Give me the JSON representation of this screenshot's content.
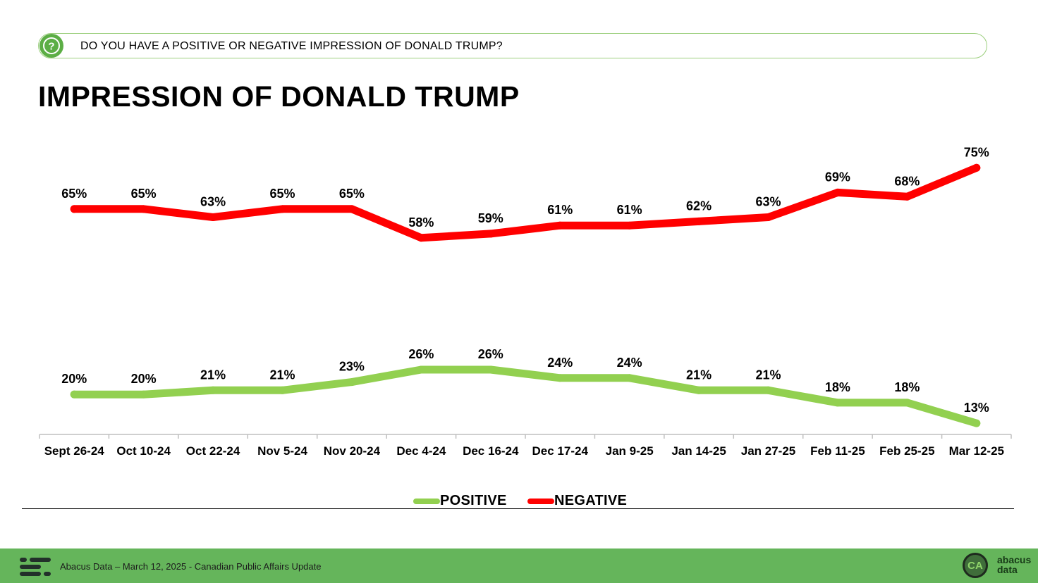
{
  "question": "DO YOU HAVE A POSITIVE OR NEGATIVE IMPRESSION OF DONALD TRUMP?",
  "title": "IMPRESSION OF DONALD TRUMP",
  "footer": {
    "text": "Abacus Data – March 12, 2025 - Canadian Public Affairs Update",
    "badge": "CA",
    "brand_line1": "abacus",
    "brand_line2": "data"
  },
  "colors": {
    "positive": "#92d050",
    "negative": "#ff0000",
    "accent": "#65b55b"
  },
  "chart_data": {
    "type": "line",
    "title": "IMPRESSION OF DONALD TRUMP",
    "xlabel": "",
    "ylabel": "",
    "ylim": [
      0,
      100
    ],
    "grid": false,
    "legend": "bottom-center",
    "categories": [
      "Sept 26-24",
      "Oct 10-24",
      "Oct 22-24",
      "Nov 5-24",
      "Nov 20-24",
      "Dec 4-24",
      "Dec 16-24",
      "Dec 17-24",
      "Jan 9-25",
      "Jan 14-25",
      "Jan 27-25",
      "Feb 11-25",
      "Feb 25-25",
      "Mar 12-25"
    ],
    "series": [
      {
        "name": "POSITIVE",
        "color": "#92d050",
        "values": [
          20,
          20,
          21,
          21,
          23,
          26,
          26,
          24,
          24,
          21,
          21,
          18,
          18,
          13
        ]
      },
      {
        "name": "NEGATIVE",
        "color": "#ff0000",
        "values": [
          65,
          65,
          63,
          65,
          65,
          58,
          59,
          61,
          61,
          62,
          63,
          69,
          68,
          75
        ]
      }
    ]
  }
}
